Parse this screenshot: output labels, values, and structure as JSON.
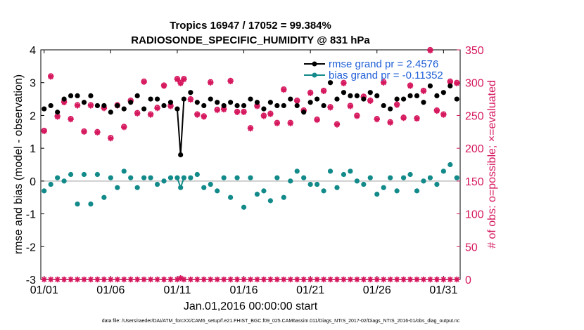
{
  "chart_data": {
    "type": "scatter",
    "title": "Tropics 16947 / 17052 = 99.384%",
    "subtitle": "RADIOSONDE_SPECIFIC_HUMIDITY @ 831 hPa",
    "xlabel": "Jan.01,2016 00:00:00 start",
    "ylabel": "rmse and bias (model - observation)",
    "ylabel_right": "# of obs: o=possible; ×=evaluated",
    "footer": "data file: /Users/raeder/DAI/ATM_forcXX/CAM6_setup/f.e21.FHIST_BGC.f09_025.CAM6assim.011/Diags_NTrS_2017-02/Diags_NTrS_2016-01/obs_diag_output.nc",
    "x_ticks": [
      "01/01",
      "01/06",
      "01/11",
      "01/16",
      "01/21",
      "01/26",
      "01/31"
    ],
    "xlim": [
      0.75,
      32.25
    ],
    "ylim": [
      -3,
      4
    ],
    "y_ticks": [
      "-3",
      "-2",
      "-1",
      "0",
      "1",
      "2",
      "3",
      "4"
    ],
    "ylim_right": [
      0,
      350
    ],
    "y_ticks_right": [
      "0",
      "50",
      "100",
      "150",
      "200",
      "250",
      "300",
      "350"
    ],
    "grid": false,
    "legend_position": "top-right",
    "x": [
      1.0,
      1.5,
      2.0,
      2.5,
      3.0,
      3.5,
      4.0,
      4.5,
      5.0,
      5.5,
      6.0,
      6.5,
      7.0,
      7.5,
      8.0,
      8.5,
      9.0,
      9.5,
      10.0,
      10.5,
      11.0,
      11.25,
      11.5,
      12.0,
      12.5,
      13.0,
      13.5,
      14.0,
      14.5,
      15.0,
      15.5,
      16.0,
      16.5,
      17.0,
      17.5,
      18.0,
      18.5,
      19.0,
      19.5,
      20.0,
      20.5,
      21.0,
      21.5,
      22.0,
      22.5,
      23.0,
      23.5,
      24.0,
      24.5,
      25.0,
      25.5,
      26.0,
      26.5,
      27.0,
      27.5,
      28.0,
      28.5,
      29.0,
      29.5,
      30.0,
      30.5,
      31.0,
      31.5,
      32.0
    ],
    "series": [
      {
        "name": "rmse grand pr = 2.4576",
        "color": "#000000",
        "axis": "left",
        "values": [
          2.2,
          2.3,
          2.1,
          2.5,
          2.6,
          2.6,
          2.4,
          2.6,
          2.3,
          2.3,
          2.1,
          2.3,
          2.2,
          2.4,
          2.6,
          2.2,
          2.5,
          2.5,
          2.3,
          2.4,
          2.2,
          0.8,
          2.5,
          2.7,
          2.4,
          2.3,
          2.5,
          2.4,
          2.3,
          2.4,
          2.3,
          2.3,
          2.5,
          2.4,
          2.2,
          2.4,
          2.3,
          2.3,
          2.5,
          2.3,
          2.1,
          2.4,
          2.5,
          2.3,
          3.0,
          2.5,
          2.7,
          2.6,
          2.6,
          2.5,
          2.7,
          2.6,
          2.3,
          2.2,
          2.5,
          2.5,
          2.6,
          2.6,
          2.4,
          2.9,
          2.6,
          2.7,
          2.9,
          2.5
        ]
      },
      {
        "name": "bias grand pr = -0.11352",
        "color": "#138a8a",
        "axis": "left",
        "values": [
          -0.3,
          -0.1,
          0.1,
          0.0,
          0.2,
          -0.7,
          0.2,
          -0.7,
          0.2,
          -0.5,
          0.1,
          -0.2,
          0.3,
          0.1,
          -0.2,
          0.1,
          0.1,
          -0.1,
          0.0,
          0.1,
          0.1,
          -0.2,
          0.1,
          0.1,
          0.2,
          -0.2,
          -0.1,
          -0.3,
          0.1,
          -0.5,
          0.1,
          -0.8,
          0.1,
          -0.4,
          -0.3,
          -0.6,
          0.1,
          -0.5,
          0.0,
          0.3,
          0.1,
          -0.1,
          -0.1,
          -0.3,
          0.3,
          -0.2,
          0.2,
          0.3,
          0.0,
          -0.1,
          0.1,
          -0.4,
          -0.2,
          0.1,
          -0.3,
          0.1,
          0.2,
          -0.3,
          0.0,
          0.1,
          -0.1,
          0.3,
          0.5,
          0.1
        ]
      },
      {
        "name": "obs possible",
        "color": "#d6185e",
        "axis": "right",
        "values": [
          227,
          310,
          249,
          271,
          245,
          266,
          226,
          266,
          225,
          262,
          216,
          266,
          233,
          273,
          254,
          302,
          252,
          262,
          296,
          265,
          306,
          300,
          306,
          275,
          252,
          249,
          301,
          259,
          260,
          303,
          256,
          256,
          231,
          265,
          250,
          253,
          239,
          290,
          239,
          273,
          258,
          285,
          244,
          288,
          263,
          237,
          300,
          265,
          250,
          279,
          273,
          245,
          301,
          240,
          267,
          247,
          296,
          246,
          288,
          350,
          258,
          252,
          302,
          300
        ]
      },
      {
        "name": "obs evaluated",
        "color": "#d6185e",
        "axis": "right",
        "values": [
          226,
          309,
          248,
          270,
          244,
          265,
          225,
          265,
          224,
          261,
          215,
          265,
          232,
          272,
          253,
          301,
          251,
          261,
          295,
          264,
          305,
          299,
          305,
          274,
          251,
          248,
          300,
          258,
          259,
          302,
          255,
          255,
          230,
          264,
          249,
          252,
          238,
          289,
          238,
          272,
          257,
          284,
          243,
          287,
          262,
          236,
          299,
          264,
          249,
          278,
          272,
          244,
          300,
          239,
          266,
          246,
          295,
          245,
          287,
          349,
          257,
          251,
          301,
          299
        ]
      }
    ],
    "obs_floor_values": [
      0,
      0,
      0,
      0,
      0,
      0,
      0,
      0,
      0,
      0,
      0,
      0,
      0,
      0,
      0,
      0,
      0,
      0,
      0,
      0,
      0,
      2,
      0,
      0,
      0,
      0,
      0,
      0,
      0,
      0,
      0,
      0,
      0,
      0,
      0,
      0,
      0,
      0,
      0,
      0,
      0,
      0,
      0,
      0,
      0,
      0,
      0,
      0,
      0,
      0,
      0,
      0,
      0,
      0,
      0,
      0,
      0,
      0,
      0,
      0,
      0,
      0,
      0,
      0
    ]
  }
}
